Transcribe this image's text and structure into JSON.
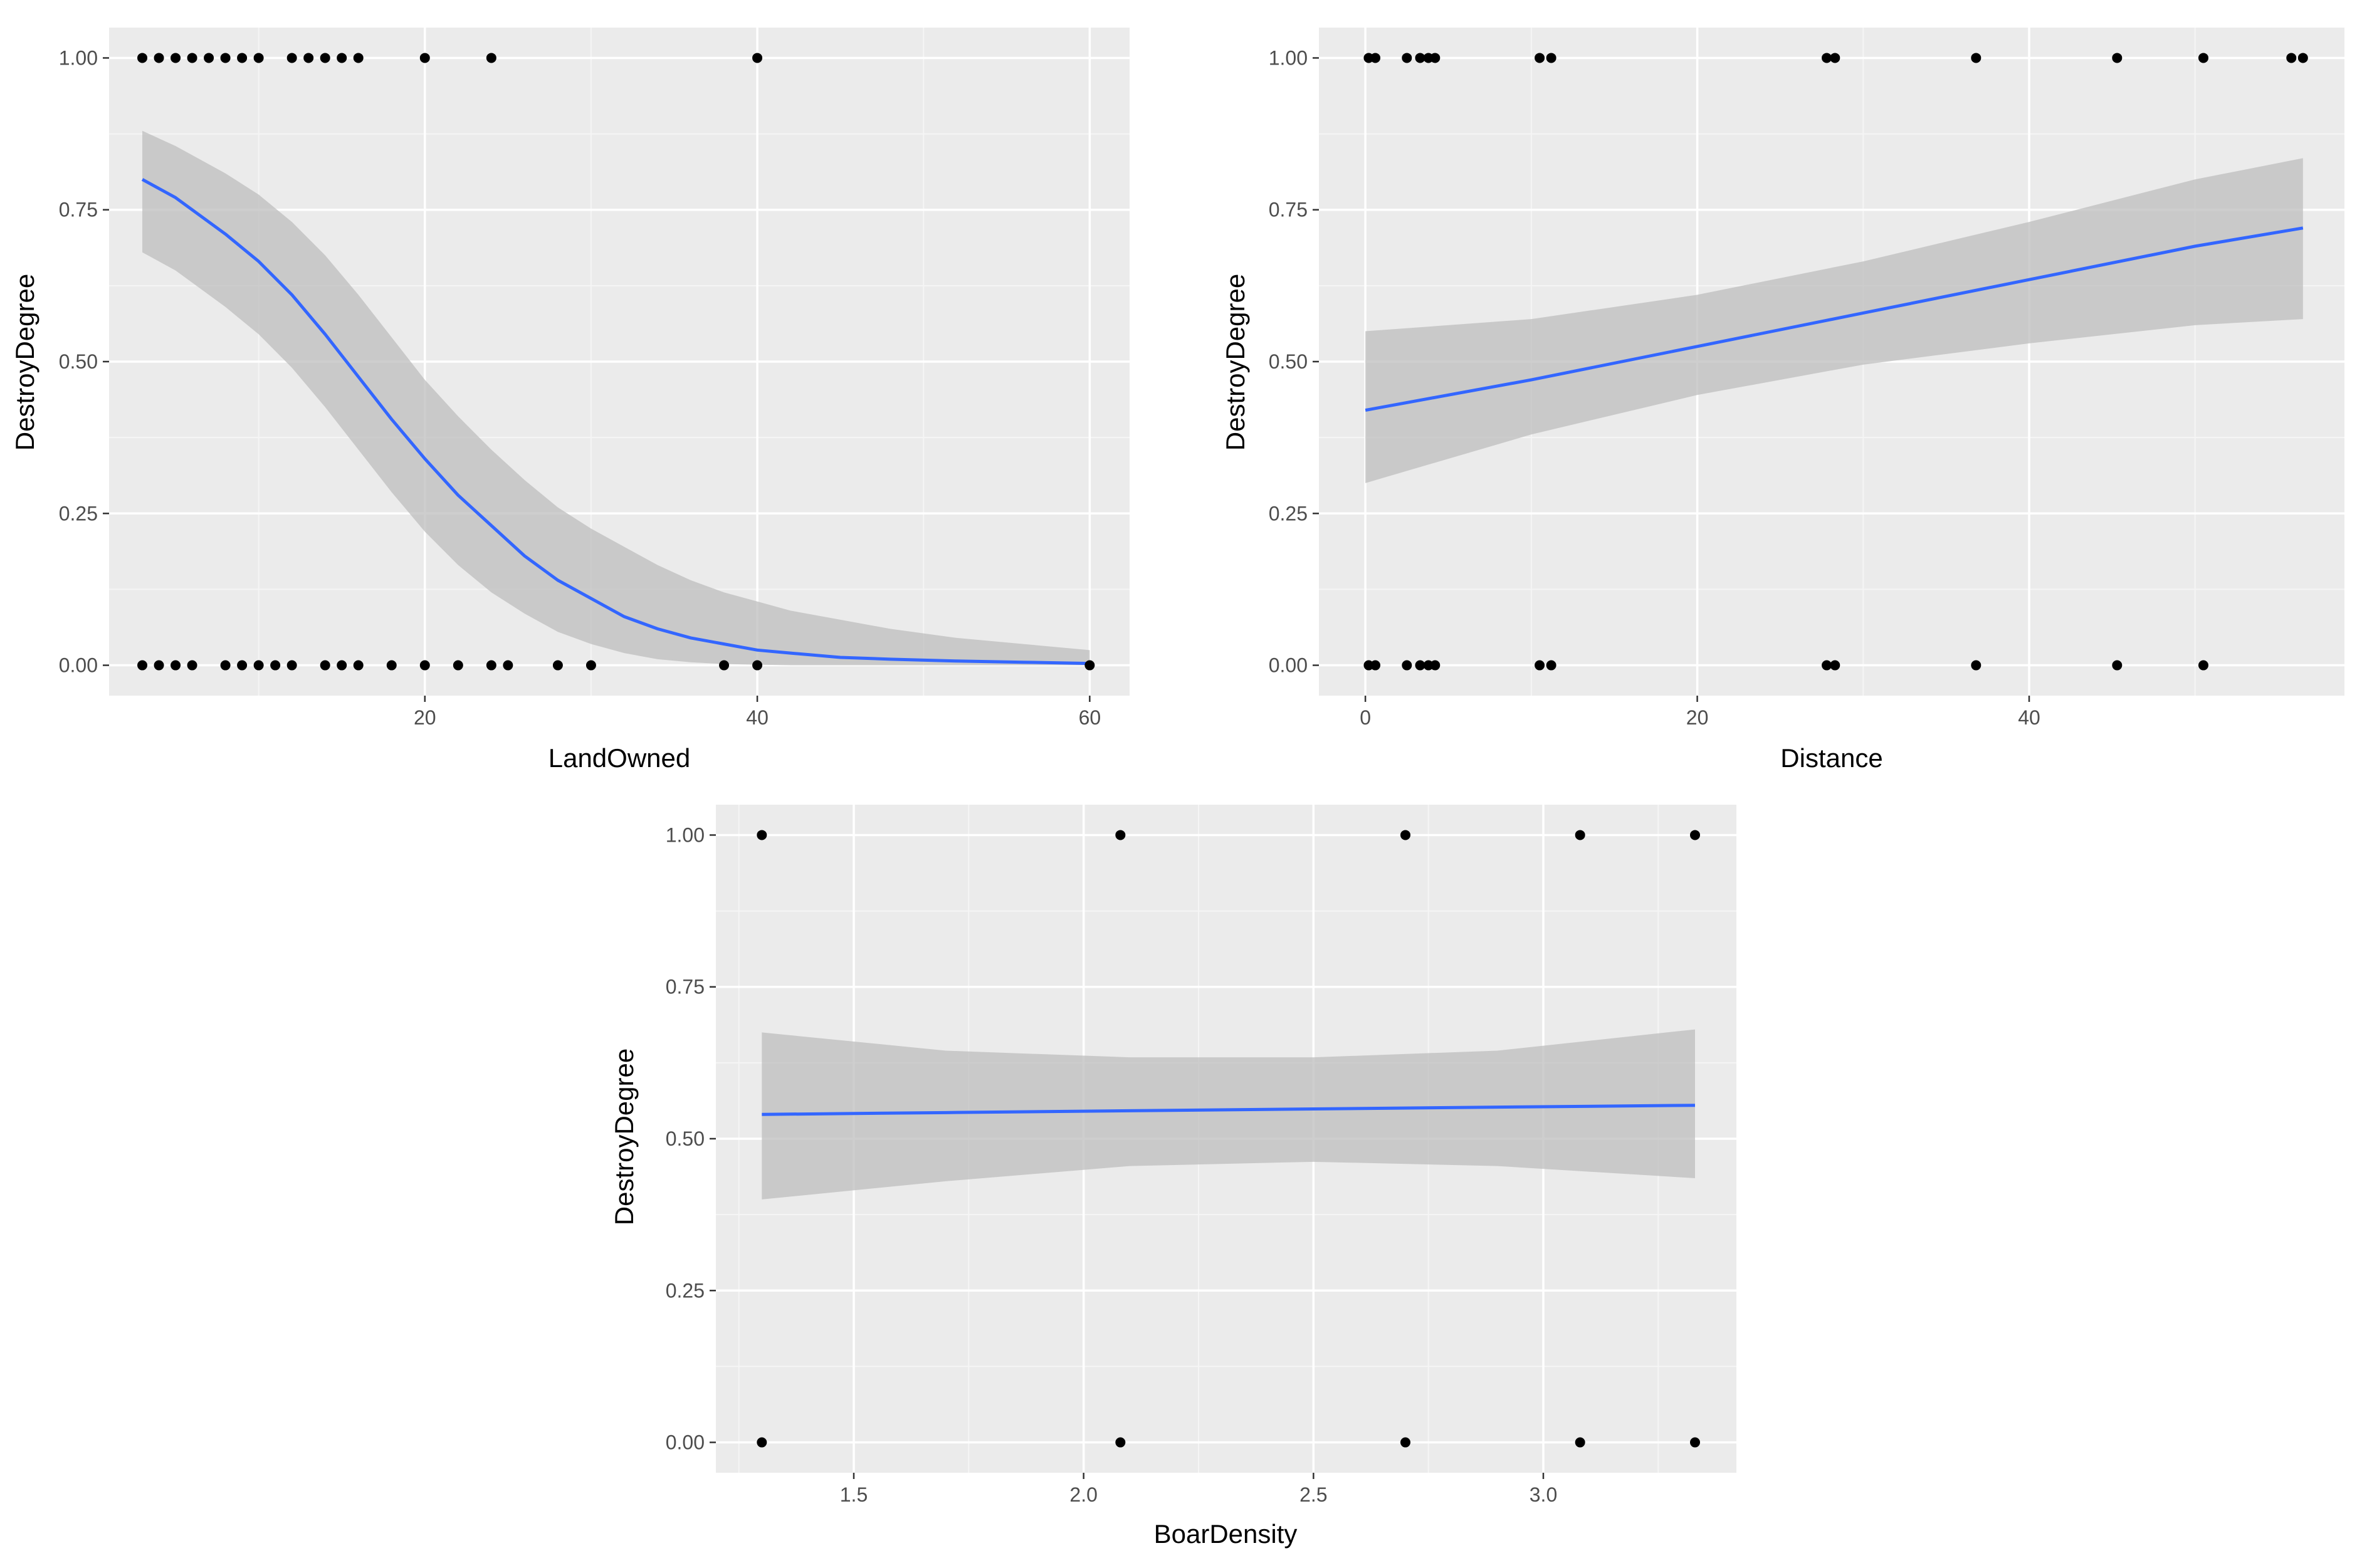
{
  "colors": {
    "panel": "#ebebeb",
    "grid_major": "#ffffff",
    "grid_minor": "#f5f5f5",
    "ribbon": "#bebebe",
    "fit_line": "#3366ff",
    "points": "#000000",
    "tick_text": "#4d4d4d"
  },
  "chart_data": [
    {
      "type": "scatter",
      "title": "",
      "xlabel": "LandOwned",
      "ylabel": "DestroyDegree",
      "xlim": [
        1,
        62.4
      ],
      "ylim": [
        -0.05,
        1.05
      ],
      "xticks": [
        20,
        40,
        60
      ],
      "xtick_labels": [
        "20",
        "40",
        "60"
      ],
      "yticks": [
        0,
        0.25,
        0.5,
        0.75,
        1
      ],
      "ytick_labels": [
        "0.00",
        "0.25",
        "0.50",
        "0.75",
        "1.00"
      ],
      "points_y1": [
        3,
        4,
        5,
        6,
        7,
        8,
        9,
        10,
        12,
        13,
        14,
        15,
        16,
        20,
        24,
        40
      ],
      "points_y0": [
        3,
        4,
        5,
        6,
        8,
        9,
        10,
        11,
        12,
        14,
        15,
        16,
        18,
        20,
        22,
        24,
        25,
        28,
        30,
        38,
        40,
        60
      ],
      "fit": {
        "x": [
          3,
          5,
          8,
          10,
          12,
          14,
          16,
          18,
          20,
          22,
          24,
          26,
          28,
          30,
          32,
          34,
          36,
          38,
          40,
          42,
          45,
          48,
          52,
          56,
          60
        ],
        "y": [
          0.8,
          0.77,
          0.71,
          0.665,
          0.61,
          0.545,
          0.475,
          0.405,
          0.34,
          0.28,
          0.23,
          0.18,
          0.14,
          0.11,
          0.08,
          0.06,
          0.045,
          0.035,
          0.025,
          0.02,
          0.013,
          0.01,
          0.007,
          0.005,
          0.003
        ],
        "lower": [
          0.68,
          0.65,
          0.59,
          0.545,
          0.49,
          0.425,
          0.355,
          0.285,
          0.22,
          0.165,
          0.12,
          0.085,
          0.055,
          0.035,
          0.02,
          0.01,
          0.005,
          0.002,
          0.001,
          0.0,
          0.0,
          0.0,
          0.0,
          0.0,
          0.0
        ],
        "upper": [
          0.88,
          0.855,
          0.81,
          0.775,
          0.73,
          0.675,
          0.61,
          0.54,
          0.47,
          0.41,
          0.355,
          0.305,
          0.26,
          0.225,
          0.195,
          0.165,
          0.14,
          0.12,
          0.105,
          0.09,
          0.075,
          0.06,
          0.045,
          0.035,
          0.025
        ]
      }
    },
    {
      "type": "scatter",
      "title": "",
      "xlabel": "Distance",
      "ylabel": "DestroyDegree",
      "xlim": [
        -2.8,
        59.0
      ],
      "ylim": [
        -0.05,
        1.05
      ],
      "xticks": [
        0,
        20,
        40
      ],
      "xtick_labels": [
        "0",
        "20",
        "40"
      ],
      "yticks": [
        0,
        0.25,
        0.5,
        0.75,
        1
      ],
      "ytick_labels": [
        "0.00",
        "0.25",
        "0.50",
        "0.75",
        "1.00"
      ],
      "points_y1": [
        0.2,
        0.6,
        2.5,
        3.3,
        3.8,
        4.2,
        10.5,
        11.2,
        27.8,
        28.3,
        36.8,
        45.3,
        50.5,
        55.8,
        56.5
      ],
      "points_y0": [
        0.2,
        0.6,
        2.5,
        3.3,
        3.8,
        4.2,
        10.5,
        11.2,
        27.8,
        28.3,
        36.8,
        45.3,
        50.5
      ],
      "fit": {
        "x": [
          0,
          10,
          20,
          30,
          40,
          50,
          56.5
        ],
        "y": [
          0.42,
          0.47,
          0.525,
          0.58,
          0.635,
          0.69,
          0.72
        ],
        "lower": [
          0.3,
          0.38,
          0.445,
          0.495,
          0.53,
          0.56,
          0.57
        ],
        "upper": [
          0.55,
          0.57,
          0.61,
          0.665,
          0.73,
          0.8,
          0.835
        ]
      }
    },
    {
      "type": "scatter",
      "title": "",
      "xlabel": "BoarDensity",
      "ylabel": "DestroyDegree",
      "xlim": [
        1.2,
        3.42
      ],
      "ylim": [
        -0.05,
        1.05
      ],
      "xticks": [
        1.5,
        2.0,
        2.5,
        3.0
      ],
      "xtick_labels": [
        "1.5",
        "2.0",
        "2.5",
        "3.0"
      ],
      "yticks": [
        0,
        0.25,
        0.5,
        0.75,
        1
      ],
      "ytick_labels": [
        "0.00",
        "0.25",
        "0.50",
        "0.75",
        "1.00"
      ],
      "points_y1": [
        1.3,
        2.08,
        2.7,
        3.08,
        3.33
      ],
      "points_y0": [
        1.3,
        2.08,
        2.7,
        3.08,
        3.33
      ],
      "fit": {
        "x": [
          1.3,
          1.7,
          2.1,
          2.5,
          2.9,
          3.33
        ],
        "y": [
          0.54,
          0.543,
          0.546,
          0.549,
          0.552,
          0.555
        ],
        "lower": [
          0.4,
          0.43,
          0.455,
          0.462,
          0.455,
          0.435
        ],
        "upper": [
          0.675,
          0.645,
          0.634,
          0.634,
          0.645,
          0.68
        ]
      }
    }
  ]
}
